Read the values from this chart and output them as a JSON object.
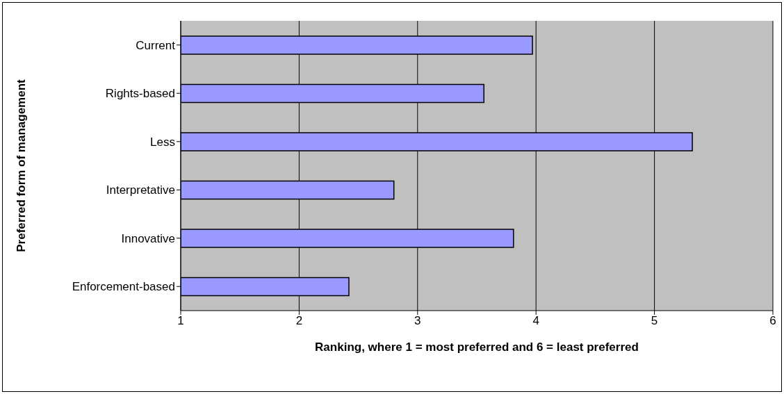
{
  "chart_data": {
    "type": "bar",
    "orientation": "horizontal",
    "ylabel": "Preferred form of management",
    "xlabel": "Ranking, where 1 = most preferred and 6 = least preferred",
    "categories": [
      "Current",
      "Rights-based",
      "Less",
      "Interpretative",
      "Innovative",
      "Enforcement-based"
    ],
    "values": [
      3.97,
      3.56,
      5.32,
      2.8,
      3.81,
      2.42
    ],
    "color": "#9999ff",
    "xlim": [
      1,
      6
    ],
    "xticks": [
      1,
      2,
      3,
      4,
      5,
      6
    ],
    "grid": "x"
  }
}
